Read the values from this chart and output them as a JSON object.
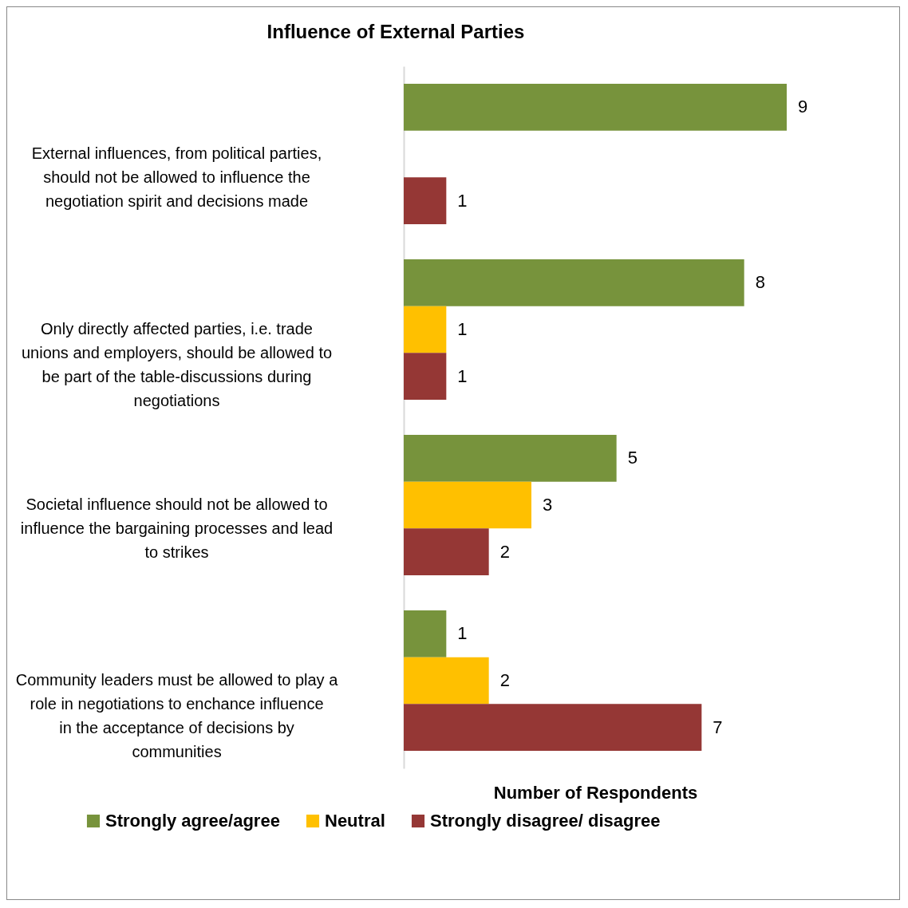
{
  "chart_data": {
    "type": "bar",
    "orientation": "horizontal",
    "title": "Influence of External Parties",
    "xlabel": "Number of Respondents",
    "categories": [
      "External influences, from political parties, should not be allowed to influence the negotiation spirit and decisions made",
      "Only directly affected parties, i.e. trade unions and employers,  should be allowed to be part of the table-discussions during negotiations",
      "Societal influence should not be allowed to influence the bargaining processes and lead to strikes",
      "Community leaders must be allowed to play a role in negotiations to enchance influence in the acceptance of decisions by communities"
    ],
    "series": [
      {
        "name": "Strongly agree/agree",
        "color": "#77933c",
        "values": [
          9,
          8,
          5,
          1
        ]
      },
      {
        "name": "Neutral",
        "color": "#ffc000",
        "values": [
          null,
          1,
          3,
          2
        ]
      },
      {
        "name": "Strongly disagree/ disagree",
        "color": "#953735",
        "values": [
          1,
          1,
          2,
          7
        ]
      }
    ],
    "data_labels": true,
    "legend": "bottom",
    "tick_labels": "y"
  }
}
